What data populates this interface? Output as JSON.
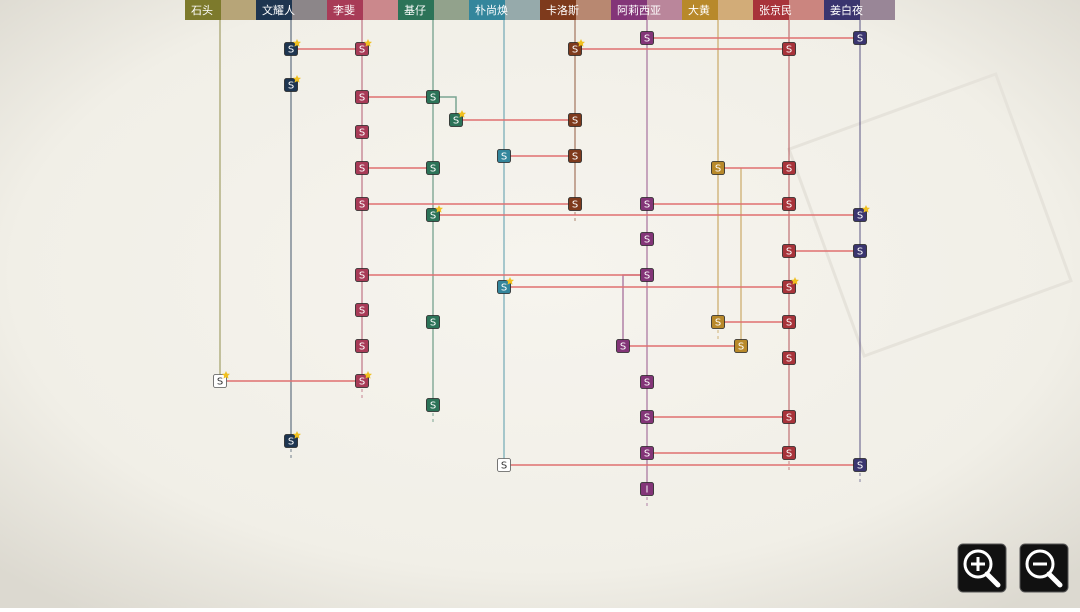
{
  "characters": [
    {
      "name": "石头",
      "color": "#7d7a2c"
    },
    {
      "name": "文耀人",
      "color": "#1e3550"
    },
    {
      "name": "李斐",
      "color": "#a83b57"
    },
    {
      "name": "基仔",
      "color": "#2c7358"
    },
    {
      "name": "朴尚焕",
      "color": "#34869c"
    },
    {
      "name": "卡洛斯",
      "color": "#7e3a1c"
    },
    {
      "name": "阿莉西亚",
      "color": "#833578"
    },
    {
      "name": "大黄",
      "color": "#b8892a"
    },
    {
      "name": "张京民",
      "color": "#a8333a"
    },
    {
      "name": "姜白夜",
      "color": "#3a356f"
    }
  ],
  "nodes": [
    {
      "label": "S"
    },
    {
      "label": "S"
    },
    {
      "label": "S"
    },
    {
      "label": "S"
    },
    {
      "label": "S"
    },
    {
      "label": "S"
    },
    {
      "label": "S"
    },
    {
      "label": "S"
    },
    {
      "label": "S"
    },
    {
      "label": "S"
    },
    {
      "label": "S"
    },
    {
      "label": "S"
    },
    {
      "label": "S"
    },
    {
      "label": "S"
    },
    {
      "label": "S"
    },
    {
      "label": "S"
    },
    {
      "label": "S"
    },
    {
      "label": "S"
    },
    {
      "label": "S"
    },
    {
      "label": "S"
    },
    {
      "label": "S"
    },
    {
      "label": "S"
    },
    {
      "label": "S"
    },
    {
      "label": "S"
    },
    {
      "label": "S"
    },
    {
      "label": "S"
    },
    {
      "label": "S"
    },
    {
      "label": "S"
    },
    {
      "label": "S"
    },
    {
      "label": "S"
    },
    {
      "label": "S"
    },
    {
      "label": "S"
    },
    {
      "label": "I"
    },
    {
      "label": "S"
    },
    {
      "label": "S"
    },
    {
      "label": "S"
    },
    {
      "label": "S"
    },
    {
      "label": "S"
    },
    {
      "label": "S"
    },
    {
      "label": "S"
    },
    {
      "label": "S"
    },
    {
      "label": "S"
    },
    {
      "label": "S"
    },
    {
      "label": "S"
    },
    {
      "label": "S"
    },
    {
      "label": "S"
    },
    {
      "label": "S"
    },
    {
      "label": "S"
    },
    {
      "label": "S"
    },
    {
      "label": "S"
    },
    {
      "label": "S"
    }
  ]
}
